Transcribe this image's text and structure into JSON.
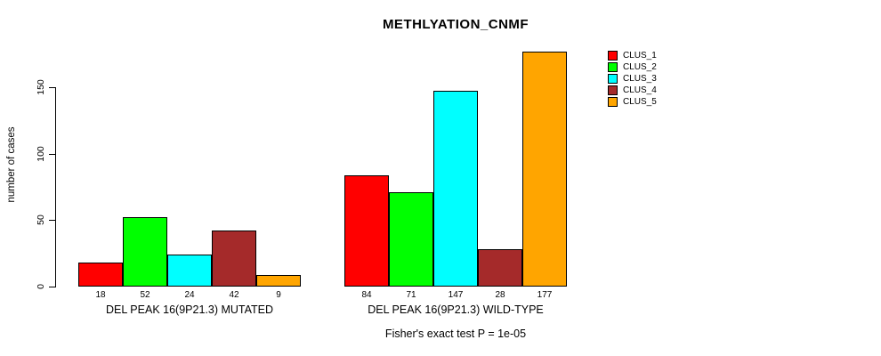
{
  "chart_data": {
    "type": "bar",
    "title": "METHLYATION_CNMF",
    "ylabel": "number of cases",
    "xlabel": "",
    "annotation": "Fisher's exact test P = 1e-05",
    "yticks": [
      0,
      50,
      100,
      150
    ],
    "ylim": [
      0,
      177
    ],
    "grid": false,
    "legend_position": "right",
    "bar_value_labels": true,
    "categories": [
      "DEL PEAK 16(9P21.3) MUTATED",
      "DEL PEAK 16(9P21.3) WILD-TYPE"
    ],
    "series": [
      {
        "name": "CLUS_1",
        "color": "#FF0000",
        "values": [
          18,
          84
        ]
      },
      {
        "name": "CLUS_2",
        "color": "#00FF00",
        "values": [
          52,
          71
        ]
      },
      {
        "name": "CLUS_3",
        "color": "#00FFFF",
        "values": [
          24,
          147
        ]
      },
      {
        "name": "CLUS_4",
        "color": "#A52A2A",
        "values": [
          42,
          28
        ]
      },
      {
        "name": "CLUS_5",
        "color": "#FFA500",
        "values": [
          9,
          177
        ]
      }
    ]
  }
}
